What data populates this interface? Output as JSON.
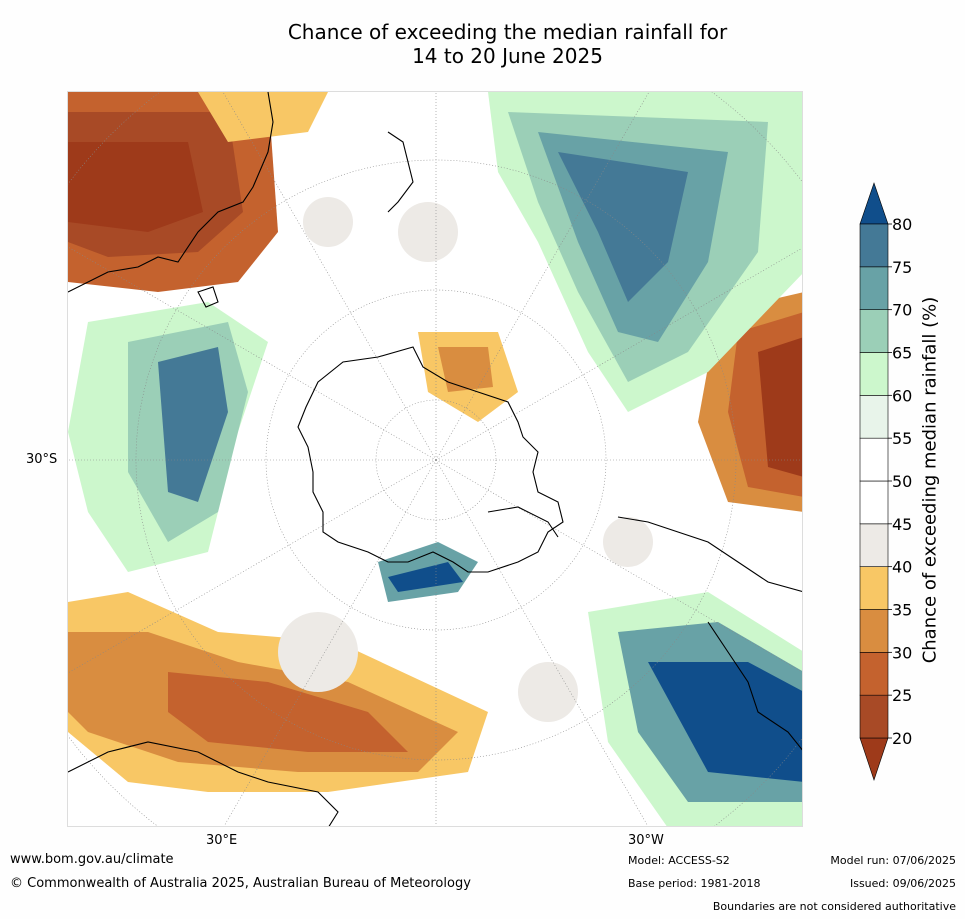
{
  "title_line1": "Chance of exceeding the median rainfall for",
  "title_line2": "14 to 20 June 2025",
  "map": {
    "projection": "south polar stereographic",
    "colors": {
      "below": "#9e3a1a",
      "20_25": "#a84a26",
      "25_30": "#c4622e",
      "30_35": "#d98d40",
      "35_40": "#f8c765",
      "40_45": "#edeae6",
      "45_55": "#ffffff",
      "55_60": "#e8f4ea",
      "60_65": "#ccf7cc",
      "65_70": "#9bcfb7",
      "70_75": "#68a2a6",
      "75_80": "#447996",
      "above": "#104e8b",
      "land_outline": "#000000",
      "graticule": "#888888"
    },
    "lat_label": "30°S",
    "lon_label_left": "30°E",
    "lon_label_right": "30°W"
  },
  "colorbar": {
    "label": "Chance of exceeding median rainfall (%)",
    "ticks": [
      "20",
      "25",
      "30",
      "35",
      "40",
      "45",
      "50",
      "55",
      "60",
      "65",
      "70",
      "75",
      "80"
    ],
    "segments": [
      {
        "from": 20,
        "to": 25,
        "color": "#a84a26"
      },
      {
        "from": 25,
        "to": 30,
        "color": "#c4622e"
      },
      {
        "from": 30,
        "to": 35,
        "color": "#d98d40"
      },
      {
        "from": 35,
        "to": 40,
        "color": "#f8c765"
      },
      {
        "from": 40,
        "to": 45,
        "color": "#edeae6"
      },
      {
        "from": 45,
        "to": 50,
        "color": "#ffffff"
      },
      {
        "from": 50,
        "to": 55,
        "color": "#ffffff"
      },
      {
        "from": 55,
        "to": 60,
        "color": "#e8f4ea"
      },
      {
        "from": 60,
        "to": 65,
        "color": "#ccf7cc"
      },
      {
        "from": 65,
        "to": 70,
        "color": "#9bcfb7"
      },
      {
        "from": 70,
        "to": 75,
        "color": "#68a2a6"
      },
      {
        "from": 75,
        "to": 80,
        "color": "#447996"
      }
    ],
    "under_color": "#9e3a1a",
    "over_color": "#104e8b"
  },
  "footer": {
    "website": "www.bom.gov.au/climate",
    "copyright": "© Commonwealth of Australia 2025, Australian Bureau of Meteorology",
    "model": "Model: ACCESS-S2",
    "base_period": "Base period: 1981-2018",
    "model_run": "Model run: 07/06/2025",
    "issued": "Issued: 09/06/2025",
    "disclaimer": "Boundaries are not considered authoritative"
  }
}
